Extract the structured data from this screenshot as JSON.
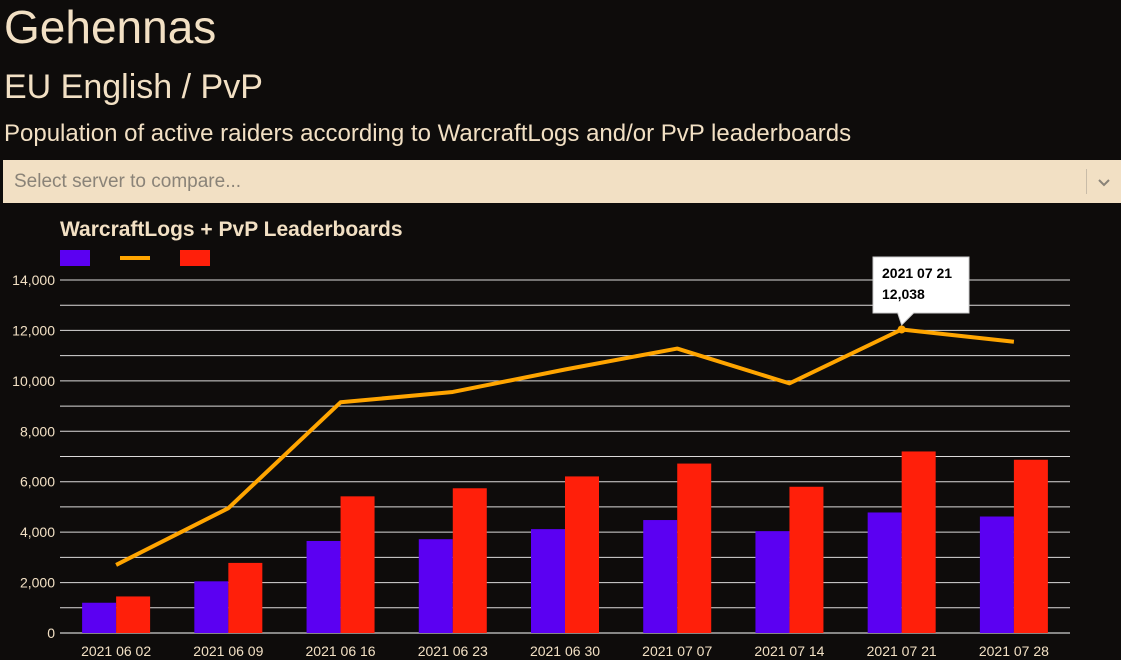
{
  "header": {
    "server_name": "Gehennas",
    "region": "EU English / PvP",
    "description": "Population of active raiders according to WarcraftLogs and/or PvP leaderboards"
  },
  "compare_select": {
    "placeholder": "Select server to compare..."
  },
  "icons": {
    "select_chevron": "chevron-down-icon"
  },
  "colors": {
    "series_1": "#5b00f2",
    "series_2": "#ffa500",
    "series_3": "#ff1f0a",
    "text": "#f2e0c4",
    "background": "#0e0c0b"
  },
  "chart_data": {
    "type": "bar",
    "title": "WarcraftLogs + PvP Leaderboards",
    "xlabel": "",
    "ylabel": "",
    "ylim": [
      0,
      14000
    ],
    "y_ticks": [
      0,
      2000,
      4000,
      6000,
      8000,
      10000,
      12000,
      14000
    ],
    "y_tick_labels": [
      "0",
      "2,000",
      "4,000",
      "6,000",
      "8,000",
      "10,000",
      "12,000",
      "14,000"
    ],
    "grid": true,
    "legend": "top-left",
    "categories": [
      "2021 06 02",
      "2021 06 09",
      "2021 06 16",
      "2021 06 23",
      "2021 06 30",
      "2021 07 07",
      "2021 07 14",
      "2021 07 21",
      "2021 07 28"
    ],
    "series": [
      {
        "type": "bar",
        "color": "#5b00f2",
        "values": [
          1200,
          2050,
          3650,
          3720,
          4120,
          4480,
          4040,
          4780,
          4620
        ]
      },
      {
        "type": "line",
        "color": "#ffa500",
        "values": [
          2700,
          4950,
          9150,
          9560,
          10450,
          11280,
          9900,
          12038,
          11550
        ]
      },
      {
        "type": "bar",
        "color": "#ff1f0a",
        "values": [
          1450,
          2780,
          5420,
          5740,
          6210,
          6720,
          5800,
          7200,
          6870
        ]
      }
    ],
    "tooltip": {
      "category": "2021 07 21",
      "value": "12,038"
    }
  }
}
